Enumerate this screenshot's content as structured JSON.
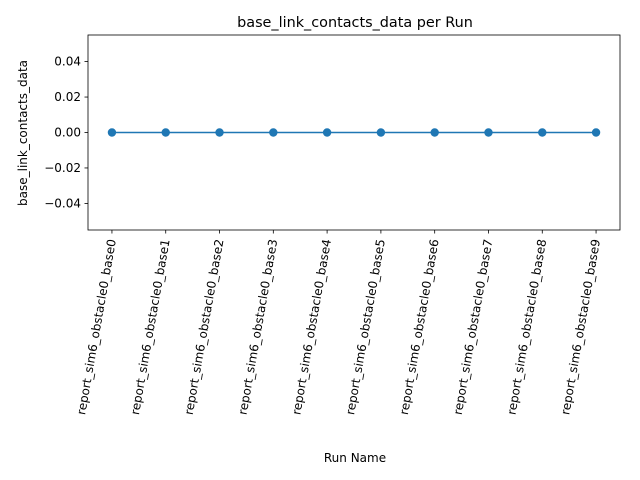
{
  "chart_data": {
    "type": "line",
    "title": "base_link_contacts_data per Run",
    "xlabel": "Run Name",
    "ylabel": "base_link_contacts_data",
    "categories": [
      "report_sim6_obstacle0_base0",
      "report_sim6_obstacle0_base1",
      "report_sim6_obstacle0_base2",
      "report_sim6_obstacle0_base3",
      "report_sim6_obstacle0_base4",
      "report_sim6_obstacle0_base5",
      "report_sim6_obstacle0_base6",
      "report_sim6_obstacle0_base7",
      "report_sim6_obstacle0_base8",
      "report_sim6_obstacle0_base9"
    ],
    "series": [
      {
        "values": [
          0,
          0,
          0,
          0,
          0,
          0,
          0,
          0,
          0,
          0
        ],
        "color": "#1f77b4",
        "marker": "circle"
      }
    ],
    "ylim": [
      -0.055,
      0.055
    ],
    "yticks": [
      -0.04,
      -0.02,
      0.0,
      0.02,
      0.04
    ],
    "ytick_labels": [
      "−0.04",
      "−0.02",
      "0.00",
      "0.02",
      "0.04"
    ],
    "xtick_rotation": "80 degrees",
    "grid": false,
    "legend": "none"
  }
}
